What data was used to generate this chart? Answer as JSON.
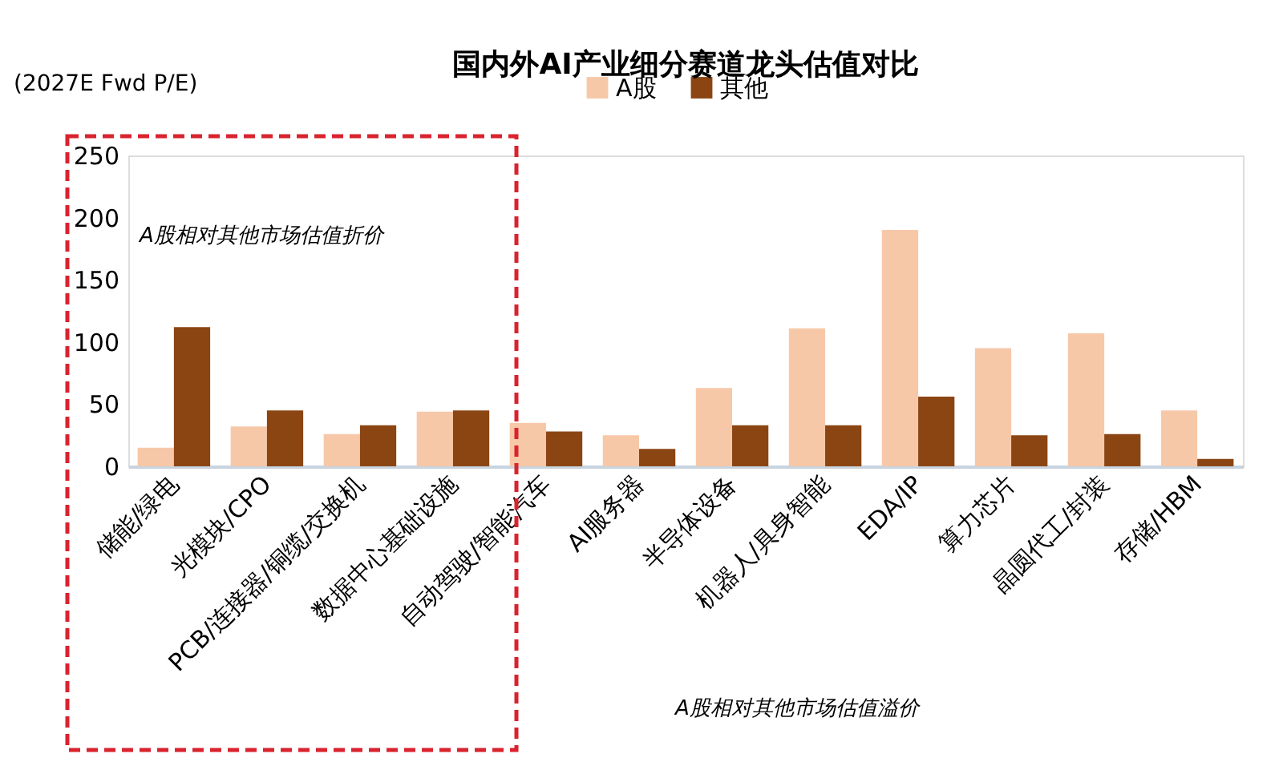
{
  "chart_data": {
    "type": "bar",
    "title": "国内外AI产业细分赛道龙头估值对比",
    "ylabel": "(2027E Fwd P/E)",
    "categories": [
      "储能/绿电",
      "光模块/CPO",
      "PCB/连接器/铜缆/交换机",
      "数据中心基础设施",
      "自动驾驶/智能汽车",
      "AI服务器",
      "半导体设备",
      "机器人/具身智能",
      "EDA/IP",
      "算力芯片",
      "晶圆代工/封装",
      "存储/HBM"
    ],
    "series": [
      {
        "name": "A股",
        "color": "#f7c8a8",
        "values": [
          15,
          32,
          26,
          44,
          35,
          25,
          63,
          111,
          190,
          95,
          107,
          45
        ]
      },
      {
        "name": "其他",
        "color": "#8b4513",
        "values": [
          112,
          45,
          33,
          45,
          28,
          14,
          33,
          33,
          56,
          25,
          26,
          6
        ]
      }
    ],
    "ylim": [
      0,
      250
    ],
    "yticks": [
      0,
      50,
      100,
      150,
      200,
      250
    ],
    "grid": false,
    "legend": "top",
    "annotations": [
      "A股相对其他市场估值折价",
      "A股相对其他市场估值溢价"
    ]
  }
}
